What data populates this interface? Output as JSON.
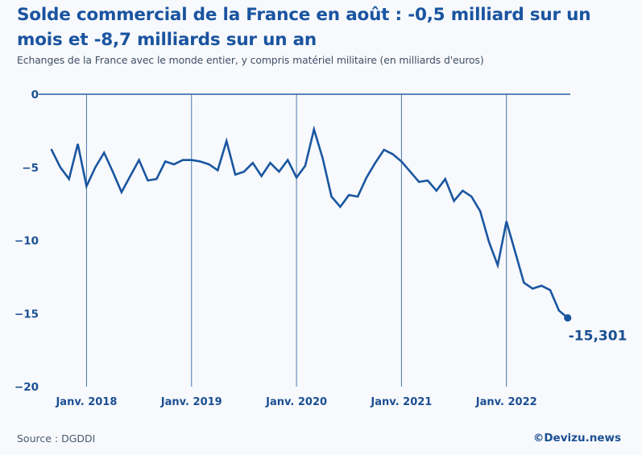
{
  "header": {
    "title": "Solde commercial de la France en août : -0,5 milliard sur un mois et -8,7 milliards sur un an",
    "subtitle": "Echanges de la France avec le monde entier, y compris matériel militaire (en milliards d'euros)"
  },
  "footer": {
    "source": "Source : DGDDI",
    "credit": "©Devizu.news"
  },
  "colors": {
    "line": "#1a56a0",
    "grid": "#2a5f9e",
    "text": "#1b4f93",
    "background": "#f7f9fc"
  },
  "chart_data": {
    "type": "line",
    "title": "Solde commercial de la France en août : -0,5 milliard sur un mois et -8,7 milliards sur un an",
    "subtitle": "Echanges de la France avec le monde entier, y compris matériel militaire (en milliards d'euros)",
    "xlabel": "",
    "ylabel": "",
    "ylim": [
      -20,
      0
    ],
    "yticks": [
      0,
      -5,
      -10,
      -15,
      -20
    ],
    "ytick_labels": [
      "0",
      "−5",
      "−10",
      "−15",
      "−20"
    ],
    "xticks": [
      {
        "label": "Janv. 2018",
        "index": 4
      },
      {
        "label": "Janv. 2019",
        "index": 16
      },
      {
        "label": "Janv. 2020",
        "index": 28
      },
      {
        "label": "Janv. 2021",
        "index": 40
      },
      {
        "label": "Janv. 2022",
        "index": 52
      }
    ],
    "grid": "vertical lines at January of each year, horizontal line at 0",
    "legend": "none",
    "x_start": "2017-09",
    "x_end": "2022-08",
    "series": [
      {
        "name": "Solde commercial",
        "x": [
          "2017-09",
          "2017-10",
          "2017-11",
          "2017-12",
          "2018-01",
          "2018-02",
          "2018-03",
          "2018-04",
          "2018-05",
          "2018-06",
          "2018-07",
          "2018-08",
          "2018-09",
          "2018-10",
          "2018-11",
          "2018-12",
          "2019-01",
          "2019-02",
          "2019-03",
          "2019-04",
          "2019-05",
          "2019-06",
          "2019-07",
          "2019-08",
          "2019-09",
          "2019-10",
          "2019-11",
          "2019-12",
          "2020-01",
          "2020-02",
          "2020-03",
          "2020-04",
          "2020-05",
          "2020-06",
          "2020-07",
          "2020-08",
          "2020-09",
          "2020-10",
          "2020-11",
          "2020-12",
          "2021-01",
          "2021-02",
          "2021-03",
          "2021-04",
          "2021-05",
          "2021-06",
          "2021-07",
          "2021-08",
          "2021-09",
          "2021-10",
          "2021-11",
          "2021-12",
          "2022-01",
          "2022-02",
          "2022-03",
          "2022-04",
          "2022-05",
          "2022-06",
          "2022-07",
          "2022-08"
        ],
        "values": [
          -3.8,
          -5.0,
          -5.8,
          -3.4,
          -6.3,
          -5.0,
          -4.0,
          -5.3,
          -6.7,
          -5.6,
          -4.5,
          -5.9,
          -5.8,
          -4.6,
          -4.8,
          -4.5,
          -4.5,
          -4.6,
          -4.8,
          -5.2,
          -3.2,
          -5.5,
          -5.3,
          -4.7,
          -5.6,
          -4.7,
          -5.3,
          -4.5,
          -5.7,
          -4.9,
          -2.4,
          -4.4,
          -7.0,
          -7.7,
          -6.9,
          -7.0,
          -5.7,
          -4.7,
          -3.8,
          -4.1,
          -4.6,
          -5.3,
          -6.0,
          -5.9,
          -6.6,
          -5.8,
          -7.3,
          -6.6,
          -7.0,
          -8.0,
          -10.1,
          -11.7,
          -8.7,
          -10.8,
          -12.9,
          -13.3,
          -13.1,
          -13.4,
          -14.8,
          -15.301
        ]
      }
    ],
    "annotations": [
      {
        "text": "-15,301",
        "x": "2022-08",
        "y": -15.301,
        "marker": "dot"
      }
    ]
  }
}
